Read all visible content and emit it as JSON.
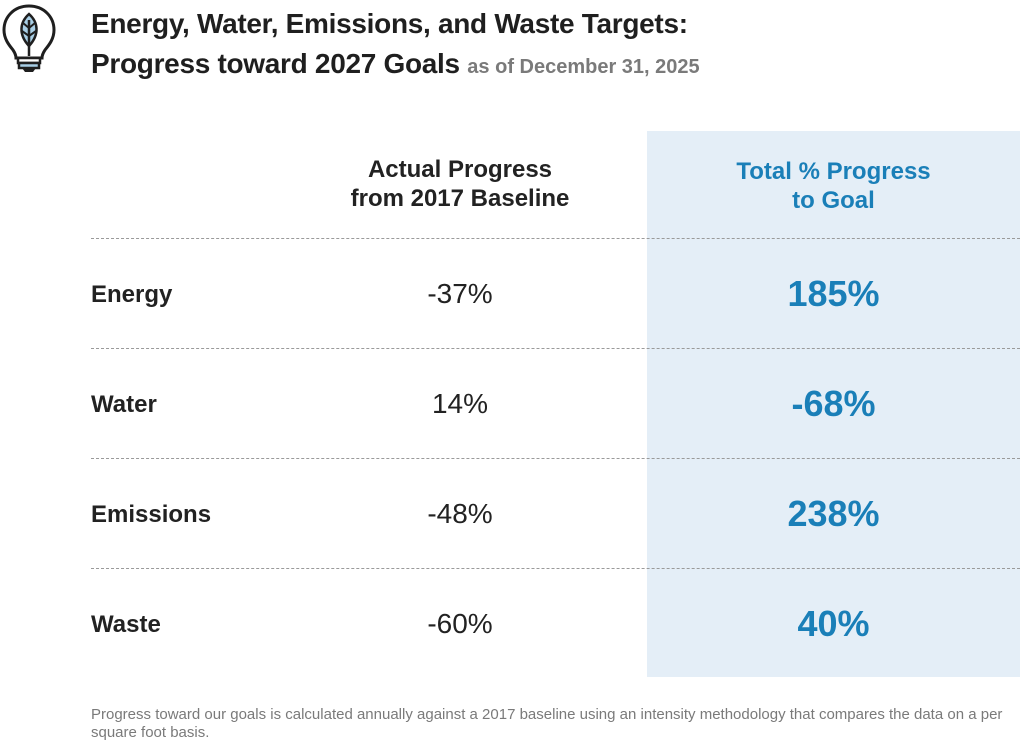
{
  "header": {
    "icon": "lightbulb-leaf-icon",
    "title_line1": "Energy, Water, Emissions, and Waste Targets:",
    "title_line2": "Progress toward 2027 Goals",
    "as_of": "as of December 31, 2025"
  },
  "table": {
    "col_actual_line1": "Actual Progress",
    "col_actual_line2": "from 2017 Baseline",
    "col_total_line1": "Total % Progress",
    "col_total_line2": "to Goal",
    "rows": [
      {
        "label": "Energy",
        "actual": "-37%",
        "total": "185%"
      },
      {
        "label": "Water",
        "actual": "14%",
        "total": "-68%"
      },
      {
        "label": "Emissions",
        "actual": "-48%",
        "total": "238%"
      },
      {
        "label": "Waste",
        "actual": "-60%",
        "total": "40%"
      }
    ]
  },
  "footnote": "Progress toward our goals is calculated annually against a 2017 baseline using an intensity methodology that compares the data on a per square foot basis.",
  "colors": {
    "accent": "#1a7fb8",
    "shade": "#e4eef7",
    "icon_fill": "#a9cfe6",
    "text": "#222222",
    "muted": "#7a7a7a"
  }
}
